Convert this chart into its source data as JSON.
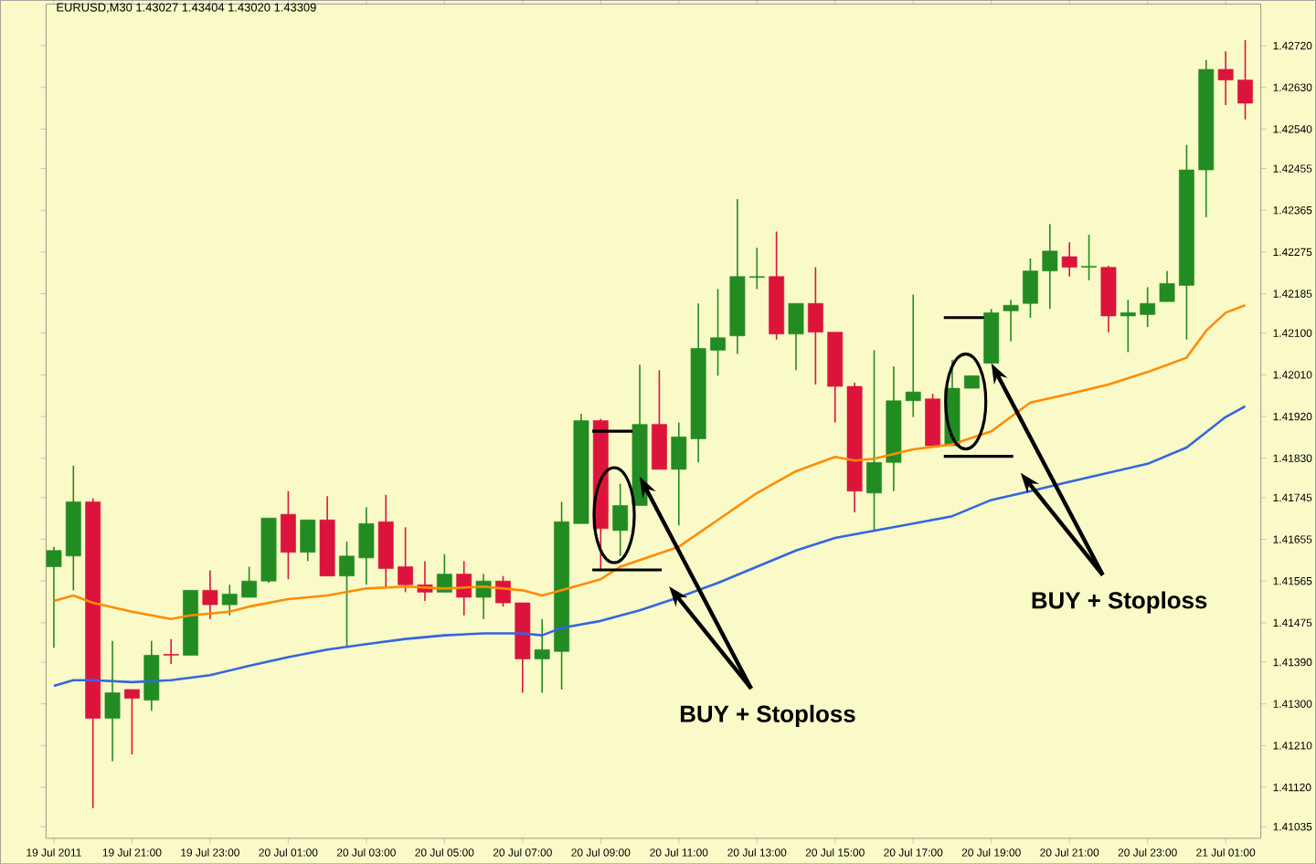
{
  "chart_data": {
    "type": "candlestick",
    "title": "EURUSD,M30  1.43027 1.43404 1.43020 1.43309",
    "x": [
      "2011-07-19T19:00",
      "2011-07-19T19:30",
      "2011-07-19T20:00",
      "2011-07-19T20:30",
      "2011-07-19T21:00",
      "2011-07-19T21:30",
      "2011-07-19T22:00",
      "2011-07-19T22:30",
      "2011-07-19T23:00",
      "2011-07-19T23:30",
      "2011-07-20T00:00",
      "2011-07-20T00:30",
      "2011-07-20T01:00",
      "2011-07-20T01:30",
      "2011-07-20T02:00",
      "2011-07-20T02:30",
      "2011-07-20T03:00",
      "2011-07-20T03:30",
      "2011-07-20T04:00",
      "2011-07-20T04:30",
      "2011-07-20T05:00",
      "2011-07-20T05:30",
      "2011-07-20T06:00",
      "2011-07-20T06:30",
      "2011-07-20T07:00",
      "2011-07-20T07:30",
      "2011-07-20T08:00",
      "2011-07-20T08:30",
      "2011-07-20T09:00",
      "2011-07-20T09:30",
      "2011-07-20T10:00",
      "2011-07-20T10:30",
      "2011-07-20T11:00",
      "2011-07-20T11:30",
      "2011-07-20T12:00",
      "2011-07-20T12:30",
      "2011-07-20T13:00",
      "2011-07-20T13:30",
      "2011-07-20T14:00",
      "2011-07-20T14:30",
      "2011-07-20T15:00",
      "2011-07-20T15:30",
      "2011-07-20T16:00",
      "2011-07-20T16:30",
      "2011-07-20T17:00",
      "2011-07-20T17:30",
      "2011-07-20T18:00",
      "2011-07-20T18:30",
      "2011-07-20T19:00",
      "2011-07-20T19:30",
      "2011-07-20T20:00",
      "2011-07-20T20:30",
      "2011-07-20T21:00",
      "2011-07-20T21:30",
      "2011-07-20T22:00",
      "2011-07-20T22:30",
      "2011-07-20T23:00",
      "2011-07-20T23:30",
      "2011-07-21T00:00",
      "2011-07-21T00:30",
      "2011-07-21T01:00",
      "2011-07-21T01:30"
    ],
    "ohlc": [
      [
        1.41596,
        1.41639,
        1.41421,
        1.41631
      ],
      [
        1.41619,
        1.41814,
        1.41545,
        1.41736
      ],
      [
        1.41736,
        1.41744,
        1.41075,
        1.41269
      ],
      [
        1.41269,
        1.41436,
        1.41176,
        1.41324
      ],
      [
        1.41331,
        1.41331,
        1.41191,
        1.41312
      ],
      [
        1.41308,
        1.41436,
        1.41285,
        1.41405
      ],
      [
        1.41407,
        1.4144,
        1.41386,
        1.41405
      ],
      [
        1.41405,
        1.41545,
        1.41405,
        1.41545
      ],
      [
        1.41545,
        1.41588,
        1.41483,
        1.41514
      ],
      [
        1.41514,
        1.41557,
        1.41491,
        1.41537
      ],
      [
        1.4153,
        1.41596,
        1.4153,
        1.41565
      ],
      [
        1.41565,
        1.41701,
        1.41561,
        1.41701
      ],
      [
        1.41709,
        1.41759,
        1.41569,
        1.41627
      ],
      [
        1.41627,
        1.41697,
        1.41608,
        1.41697
      ],
      [
        1.41697,
        1.41748,
        1.41576,
        1.41576
      ],
      [
        1.41576,
        1.4165,
        1.41425,
        1.41619
      ],
      [
        1.41615,
        1.41724,
        1.41557,
        1.41689
      ],
      [
        1.41693,
        1.41751,
        1.41549,
        1.41592
      ],
      [
        1.41596,
        1.41681,
        1.41541,
        1.41557
      ],
      [
        1.41557,
        1.41608,
        1.41522,
        1.41541
      ],
      [
        1.41541,
        1.41623,
        1.41541,
        1.4158
      ],
      [
        1.4158,
        1.41608,
        1.41491,
        1.4153
      ],
      [
        1.4153,
        1.4158,
        1.41483,
        1.41565
      ],
      [
        1.41565,
        1.41576,
        1.4151,
        1.41518
      ],
      [
        1.41518,
        1.41518,
        1.41324,
        1.41397
      ],
      [
        1.41397,
        1.41483,
        1.41324,
        1.41417
      ],
      [
        1.41413,
        1.41736,
        1.41331,
        1.41693
      ],
      [
        1.41689,
        1.41926,
        1.41689,
        1.41911
      ],
      [
        1.41911,
        1.41915,
        1.41588,
        1.41678
      ],
      [
        1.41674,
        1.41775,
        1.41619,
        1.41728
      ],
      [
        1.41728,
        1.42032,
        1.41728,
        1.41903
      ],
      [
        1.41903,
        1.4202,
        1.41806,
        1.41806
      ],
      [
        1.41806,
        1.41907,
        1.41685,
        1.41876
      ],
      [
        1.41872,
        1.42164,
        1.41821,
        1.42067
      ],
      [
        1.42063,
        1.42195,
        1.42008,
        1.4209
      ],
      [
        1.42094,
        1.42389,
        1.42055,
        1.42222
      ],
      [
        1.4222,
        1.42284,
        1.42195,
        1.42222
      ],
      [
        1.42222,
        1.42319,
        1.42086,
        1.42098
      ],
      [
        1.42098,
        1.42164,
        1.4202,
        1.42164
      ],
      [
        1.42164,
        1.42242,
        1.41989,
        1.42102
      ],
      [
        1.42102,
        1.42102,
        1.41907,
        1.41985
      ],
      [
        1.41985,
        1.41993,
        1.41713,
        1.41759
      ],
      [
        1.41755,
        1.42063,
        1.41674,
        1.41821
      ],
      [
        1.41821,
        1.42028,
        1.41759,
        1.41954
      ],
      [
        1.41954,
        1.42183,
        1.41919,
        1.41973
      ],
      [
        1.41958,
        1.41969,
        1.41857,
        1.41857
      ],
      [
        1.41857,
        1.42043,
        1.41857,
        1.41981
      ],
      [
        1.41981,
        1.42008,
        1.41981,
        1.42008
      ],
      [
        1.42035,
        1.42152,
        1.42035,
        1.42144
      ],
      [
        1.42148,
        1.42172,
        1.42082,
        1.4216
      ],
      [
        1.42164,
        1.42261,
        1.42133,
        1.42234
      ],
      [
        1.42234,
        1.42335,
        1.42152,
        1.42277
      ],
      [
        1.42265,
        1.42296,
        1.42222,
        1.42242
      ],
      [
        1.42242,
        1.42312,
        1.42214,
        1.42244
      ],
      [
        1.42242,
        1.42245,
        1.42102,
        1.42137
      ],
      [
        1.42137,
        1.42172,
        1.42059,
        1.42144
      ],
      [
        1.4214,
        1.42199,
        1.42113,
        1.42164
      ],
      [
        1.42168,
        1.42234,
        1.42168,
        1.42207
      ],
      [
        1.42203,
        1.42506,
        1.42086,
        1.42452
      ],
      [
        1.42452,
        1.42689,
        1.4235,
        1.42669
      ],
      [
        1.42669,
        1.42708,
        1.42592,
        1.42646
      ],
      [
        1.42646,
        1.42732,
        1.42561,
        1.42596
      ]
    ],
    "colors": [
      "#228b22",
      "#228b22",
      "#dc143c",
      "#228b22",
      "#dc143c",
      "#228b22",
      "#dc143c",
      "#228b22",
      "#dc143c",
      "#228b22",
      "#228b22",
      "#228b22",
      "#dc143c",
      "#228b22",
      "#dc143c",
      "#228b22",
      "#228b22",
      "#dc143c",
      "#dc143c",
      "#dc143c",
      "#228b22",
      "#dc143c",
      "#228b22",
      "#dc143c",
      "#dc143c",
      "#228b22",
      "#228b22",
      "#228b22",
      "#dc143c",
      "#228b22",
      "#228b22",
      "#dc143c",
      "#228b22",
      "#228b22",
      "#228b22",
      "#228b22",
      "#228b22",
      "#dc143c",
      "#228b22",
      "#dc143c",
      "#dc143c",
      "#dc143c",
      "#228b22",
      "#228b22",
      "#228b22",
      "#dc143c",
      "#228b22",
      "#228b22",
      "#228b22",
      "#228b22",
      "#228b22",
      "#228b22",
      "#dc143c",
      "#228b22",
      "#dc143c",
      "#228b22",
      "#228b22",
      "#228b22",
      "#228b22",
      "#228b22",
      "#dc143c",
      "#dc143c"
    ],
    "series": [
      {
        "type": "line",
        "color": "#ff8c00",
        "x": [
          "2011-07-19T19:00",
          "2011-07-19T19:30",
          "2011-07-19T20:00",
          "2011-07-19T21:00",
          "2011-07-19T22:00",
          "2011-07-19T22:30",
          "2011-07-19T23:30",
          "2011-07-20T00:00",
          "2011-07-20T01:00",
          "2011-07-20T02:00",
          "2011-07-20T03:00",
          "2011-07-20T04:00",
          "2011-07-20T05:00",
          "2011-07-20T06:00",
          "2011-07-20T07:00",
          "2011-07-20T07:30",
          "2011-07-20T08:00",
          "2011-07-20T08:30",
          "2011-07-20T09:00",
          "2011-07-20T09:30",
          "2011-07-20T11:00",
          "2011-07-20T12:00",
          "2011-07-20T13:00",
          "2011-07-20T14:00",
          "2011-07-20T15:00",
          "2011-07-20T15:30",
          "2011-07-20T16:00",
          "2011-07-20T17:00",
          "2011-07-20T18:00",
          "2011-07-20T19:00",
          "2011-07-20T20:00",
          "2011-07-20T21:00",
          "2011-07-20T22:00",
          "2011-07-20T23:00",
          "2011-07-21T00:00",
          "2011-07-21T00:30",
          "2011-07-21T01:00",
          "2011-07-21T01:30"
        ],
        "values": [
          1.41522,
          1.41534,
          1.41518,
          1.41499,
          1.41483,
          1.41491,
          1.41499,
          1.4151,
          1.41526,
          1.41534,
          1.41549,
          1.41553,
          1.41549,
          1.41553,
          1.41545,
          1.41534,
          1.41545,
          1.41557,
          1.41569,
          1.41596,
          1.41639,
          1.41697,
          1.41755,
          1.41802,
          1.41833,
          1.41825,
          1.41829,
          1.41849,
          1.4186,
          1.41888,
          1.4195,
          1.41969,
          1.41989,
          1.42016,
          1.42047,
          1.42105,
          1.42144,
          1.4216
        ]
      },
      {
        "type": "line",
        "color": "#3366e0",
        "x": [
          "2011-07-19T19:00",
          "2011-07-19T19:30",
          "2011-07-19T20:00",
          "2011-07-19T21:00",
          "2011-07-19T22:00",
          "2011-07-19T23:00",
          "2011-07-20T00:00",
          "2011-07-20T01:00",
          "2011-07-20T02:00",
          "2011-07-20T03:00",
          "2011-07-20T04:00",
          "2011-07-20T05:00",
          "2011-07-20T06:00",
          "2011-07-20T07:00",
          "2011-07-20T07:30",
          "2011-07-20T08:00",
          "2011-07-20T09:00",
          "2011-07-20T10:00",
          "2011-07-20T11:00",
          "2011-07-20T12:00",
          "2011-07-20T13:00",
          "2011-07-20T14:00",
          "2011-07-20T15:00",
          "2011-07-20T15:30",
          "2011-07-20T17:00",
          "2011-07-20T18:00",
          "2011-07-20T19:00",
          "2011-07-20T20:00",
          "2011-07-20T21:00",
          "2011-07-20T23:00",
          "2011-07-21T00:00",
          "2011-07-21T01:00",
          "2011-07-21T01:30"
        ],
        "values": [
          1.41339,
          1.41351,
          1.41351,
          1.41347,
          1.41351,
          1.41362,
          1.41382,
          1.41401,
          1.41417,
          1.41429,
          1.4144,
          1.41448,
          1.41452,
          1.41452,
          1.41448,
          1.41464,
          1.41479,
          1.41502,
          1.4153,
          1.41561,
          1.41596,
          1.41631,
          1.41658,
          1.41666,
          1.41689,
          1.41705,
          1.4174,
          1.41759,
          1.41779,
          1.41818,
          1.41853,
          1.41919,
          1.41942
        ]
      }
    ],
    "xlim": [
      "2011-07-19T18:48",
      "2011-07-21T01:54"
    ],
    "ylim": [
      1.4101,
      1.4281
    ],
    "xticks": [
      {
        "value": "2011-07-19T19:00",
        "label": "19 Jul 2011"
      },
      {
        "value": "2011-07-19T21:00",
        "label": "19 Jul 21:00"
      },
      {
        "value": "2011-07-19T23:00",
        "label": "19 Jul 23:00"
      },
      {
        "value": "2011-07-20T01:00",
        "label": "20 Jul 01:00"
      },
      {
        "value": "2011-07-20T03:00",
        "label": "20 Jul 03:00"
      },
      {
        "value": "2011-07-20T05:00",
        "label": "20 Jul 05:00"
      },
      {
        "value": "2011-07-20T07:00",
        "label": "20 Jul 07:00"
      },
      {
        "value": "2011-07-20T09:00",
        "label": "20 Jul 09:00"
      },
      {
        "value": "2011-07-20T11:00",
        "label": "20 Jul 11:00"
      },
      {
        "value": "2011-07-20T13:00",
        "label": "20 Jul 13:00"
      },
      {
        "value": "2011-07-20T15:00",
        "label": "20 Jul 15:00"
      },
      {
        "value": "2011-07-20T17:00",
        "label": "20 Jul 17:00"
      },
      {
        "value": "2011-07-20T19:00",
        "label": "20 Jul 19:00"
      },
      {
        "value": "2011-07-20T21:00",
        "label": "20 Jul 21:00"
      },
      {
        "value": "2011-07-20T23:00",
        "label": "20 Jul 23:00"
      },
      {
        "value": "2011-07-21T01:00",
        "label": "21 Jul 01:00"
      }
    ],
    "yticks": [
      {
        "value": 1.4272,
        "label": "1.42720"
      },
      {
        "value": 1.4263,
        "label": "1.42630"
      },
      {
        "value": 1.4254,
        "label": "1.42540"
      },
      {
        "value": 1.42455,
        "label": "1.42455"
      },
      {
        "value": 1.42365,
        "label": "1.42365"
      },
      {
        "value": 1.42275,
        "label": "1.42275"
      },
      {
        "value": 1.42185,
        "label": "1.42185"
      },
      {
        "value": 1.421,
        "label": "1.42100"
      },
      {
        "value": 1.4201,
        "label": "1.42010"
      },
      {
        "value": 1.4192,
        "label": "1.41920"
      },
      {
        "value": 1.4183,
        "label": "1.41830"
      },
      {
        "value": 1.41745,
        "label": "1.41745"
      },
      {
        "value": 1.41655,
        "label": "1.41655"
      },
      {
        "value": 1.41565,
        "label": "1.41565"
      },
      {
        "value": 1.41475,
        "label": "1.41475"
      },
      {
        "value": 1.4139,
        "label": "1.41390"
      },
      {
        "value": 1.413,
        "label": "1.41300"
      },
      {
        "value": 1.4121,
        "label": "1.41210"
      },
      {
        "value": 1.4112,
        "label": "1.41120"
      },
      {
        "value": 1.41035,
        "label": "1.41035"
      }
    ],
    "annotations": [
      {
        "text": "BUY + Stoploss",
        "x": "2011-07-20T10:00",
        "y": 1.4179
      },
      {
        "text": "BUY + Stoploss",
        "x": "2011-07-20T19:00",
        "y": 1.42035
      }
    ],
    "grid": false,
    "legend": false
  }
}
